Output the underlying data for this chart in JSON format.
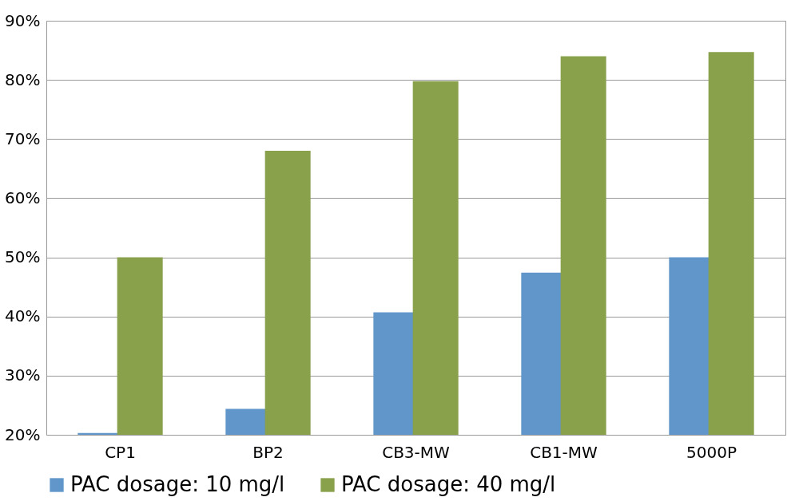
{
  "chart_data": {
    "type": "bar",
    "categories": [
      "CP1",
      "BP2",
      "CB3-MW",
      "CB1-MW",
      "5000P"
    ],
    "series": [
      {
        "name": "PAC dosage: 10 mg/l",
        "color": "#6096c9",
        "values": [
          20.3,
          24.4,
          40.7,
          47.4,
          50
        ]
      },
      {
        "name": "PAC dosage: 40 mg/l",
        "color": "#8aa14c",
        "values": [
          50,
          68,
          79.8,
          84,
          84.7
        ]
      }
    ],
    "ylim": [
      20,
      90
    ],
    "yticks": [
      {
        "value": 20,
        "label": "20%"
      },
      {
        "value": 30,
        "label": "30%"
      },
      {
        "value": 40,
        "label": "40%"
      },
      {
        "value": 50,
        "label": "50%"
      },
      {
        "value": 60,
        "label": "60%"
      },
      {
        "value": 70,
        "label": "70%"
      },
      {
        "value": 80,
        "label": "80%"
      },
      {
        "value": 90,
        "label": "90%"
      }
    ],
    "grid": "y",
    "legend": "bottom"
  }
}
